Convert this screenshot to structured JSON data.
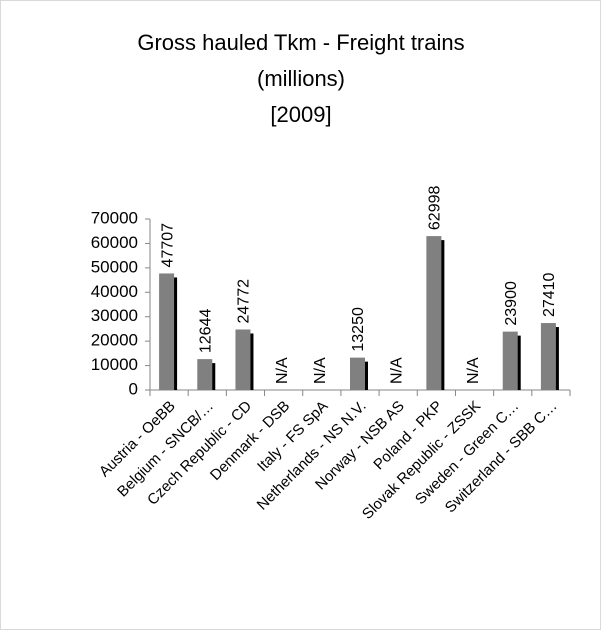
{
  "chart_data": {
    "type": "bar",
    "title": [
      "Gross hauled Tkm - Freight trains",
      "(millions)",
      "[2009]"
    ],
    "categories": [
      "Austria - OeBB",
      "Belgium - SNCB/…",
      "Czech Republic - CD",
      "Denmark - DSB",
      "Italy - FS SpA",
      "Netherlands - NS N.V.",
      "Norway - NSB AS",
      "Poland - PKP",
      "Slovak Republic - ZSSK",
      "Sweden - Green C…",
      "Switzerland - SBB C…"
    ],
    "values": [
      47707,
      12644,
      24772,
      null,
      null,
      13250,
      null,
      62998,
      null,
      23900,
      27410
    ],
    "value_labels": [
      "47707",
      "12644",
      "24772",
      "N/A",
      "N/A",
      "13250",
      "N/A",
      "62998",
      "N/A",
      "23900",
      "27410"
    ],
    "color": "#808080",
    "ylim": [
      0,
      70000
    ],
    "yticks": [
      0,
      10000,
      20000,
      30000,
      40000,
      50000,
      60000,
      70000
    ]
  }
}
